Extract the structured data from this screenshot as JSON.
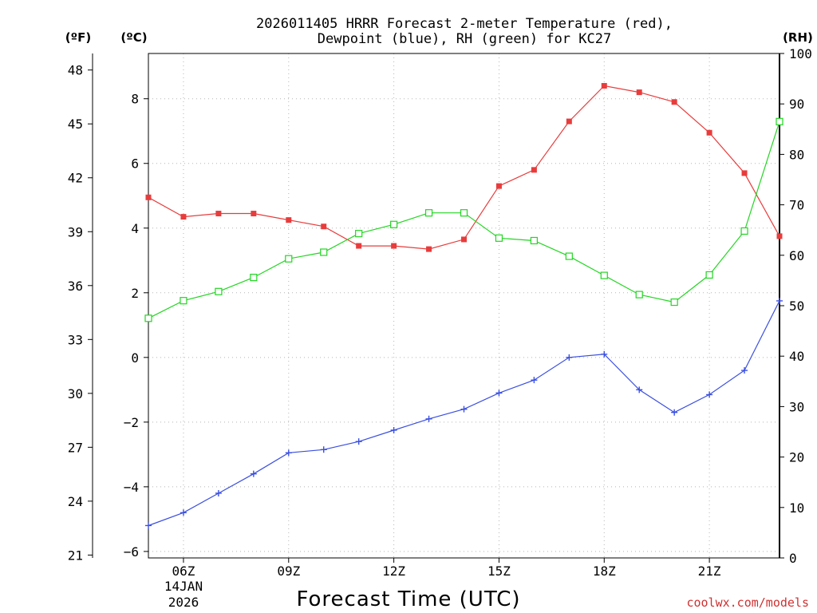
{
  "chart_data": {
    "type": "line",
    "title": [
      "2026011405 HRRR Forecast 2-meter Temperature (red),",
      "Dewpoint (blue), RH (green) for KC27"
    ],
    "xlabel": "Forecast Time (UTC)",
    "credit": "coolwx.com/models",
    "units": {
      "fahrenheit": "(ºF)",
      "celsius": "(ºC)",
      "rh": "(RH)"
    },
    "date_label": [
      "14JAN",
      "2026"
    ],
    "x_hours": [
      5,
      6,
      7,
      8,
      9,
      10,
      11,
      12,
      13,
      14,
      15,
      16,
      17,
      18,
      19,
      20,
      21,
      22,
      23
    ],
    "x_range": [
      5,
      23
    ],
    "x_ticks": [
      {
        "hour": 6,
        "label": "06Z"
      },
      {
        "hour": 9,
        "label": "09Z"
      },
      {
        "hour": 12,
        "label": "12Z"
      },
      {
        "hour": 15,
        "label": "15Z"
      },
      {
        "hour": 18,
        "label": "18Z"
      },
      {
        "hour": 21,
        "label": "21Z"
      }
    ],
    "y_celsius": {
      "range": [
        -6.2,
        9.4
      ],
      "ticks": [
        -6,
        -4,
        -2,
        0,
        2,
        4,
        6,
        8
      ],
      "tick_labels": [
        "−6",
        "−4",
        "−2",
        "0",
        "2",
        "4",
        "6",
        "8"
      ]
    },
    "y_fahrenheit": {
      "ticks": [
        21,
        24,
        27,
        30,
        33,
        36,
        39,
        42,
        45,
        48
      ],
      "tick_labels": [
        "21",
        "24",
        "27",
        "30",
        "33",
        "36",
        "39",
        "42",
        "45",
        "48"
      ]
    },
    "y_rh": {
      "range": [
        0,
        100
      ],
      "ticks": [
        0,
        10,
        20,
        30,
        40,
        50,
        60,
        70,
        80,
        90,
        100
      ],
      "tick_labels": [
        "0",
        "10",
        "20",
        "30",
        "40",
        "50",
        "60",
        "70",
        "80",
        "90",
        "100"
      ]
    },
    "series": [
      {
        "name": "Temperature",
        "axis": "celsius",
        "color": "#e83c3c",
        "marker": "filled-square",
        "values": [
          4.95,
          4.35,
          4.45,
          4.45,
          4.25,
          4.05,
          3.45,
          3.45,
          3.35,
          3.65,
          5.3,
          5.8,
          7.3,
          8.4,
          8.2,
          7.9,
          6.95,
          5.7,
          3.75
        ]
      },
      {
        "name": "Dewpoint",
        "axis": "celsius",
        "color": "#3a4fe0",
        "marker": "plus",
        "values": [
          -5.2,
          -4.8,
          -4.2,
          -3.6,
          -2.95,
          -2.85,
          -2.6,
          -2.25,
          -1.9,
          -1.6,
          -1.1,
          -0.7,
          0.0,
          0.1,
          -1.0,
          -1.7,
          -1.15,
          -0.4,
          1.75
        ]
      },
      {
        "name": "Relative Humidity",
        "axis": "rh",
        "color": "#22d622",
        "marker": "open-square",
        "values": [
          47.5,
          51.0,
          52.8,
          55.6,
          59.3,
          60.6,
          64.3,
          66.1,
          68.4,
          68.4,
          63.4,
          62.9,
          59.8,
          56.0,
          52.2,
          50.7,
          56.1,
          64.8,
          86.5
        ]
      }
    ]
  }
}
